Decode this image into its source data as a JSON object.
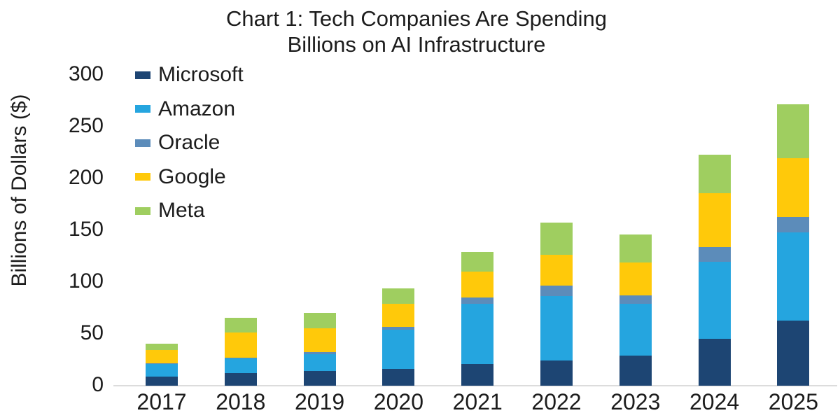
{
  "title": {
    "line1": "Chart 1: Tech Companies Are Spending",
    "line2": "Billions on AI Infrastructure"
  },
  "y_axis": {
    "label": "Billions of Dollars ($)",
    "ticks": [
      0,
      50,
      100,
      150,
      200,
      250,
      300
    ]
  },
  "colors": {
    "microsoft": "#1D4573",
    "amazon": "#25A5DF",
    "oracle": "#5C8CBA",
    "google": "#FFC90A",
    "meta": "#9FCE60",
    "axis_line": "#DCDCDC"
  },
  "chart_data": {
    "type": "bar",
    "stacked": true,
    "title": "Chart 1: Tech Companies Are Spending Billions on AI Infrastructure",
    "xlabel": "",
    "ylabel": "Billions of Dollars ($)",
    "ylim": [
      0,
      300
    ],
    "y_tick_step": 50,
    "grid": false,
    "legend_position": "top-left",
    "categories": [
      "2017",
      "2018",
      "2019",
      "2020",
      "2021",
      "2022",
      "2023",
      "2024",
      "2025"
    ],
    "series": [
      {
        "name": "Microsoft",
        "color": "#1D4573",
        "values": [
          9,
          12,
          14,
          16,
          21,
          24,
          29,
          45,
          63
        ]
      },
      {
        "name": "Amazon",
        "color": "#25A5DF",
        "values": [
          12,
          14,
          16,
          38,
          58,
          62,
          50,
          74,
          85
        ]
      },
      {
        "name": "Oracle",
        "color": "#5C8CBA",
        "values": [
          1,
          1,
          2,
          3,
          6,
          10,
          8,
          14,
          15
        ]
      },
      {
        "name": "Google",
        "color": "#FFC90A",
        "values": [
          13,
          24,
          23,
          22,
          25,
          30,
          32,
          52,
          57
        ]
      },
      {
        "name": "Meta",
        "color": "#9FCE60",
        "values": [
          6,
          14,
          15,
          15,
          19,
          31,
          27,
          37,
          52
        ]
      }
    ],
    "totals": [
      41,
      65,
      70,
      94,
      129,
      157,
      146,
      222,
      272
    ]
  }
}
